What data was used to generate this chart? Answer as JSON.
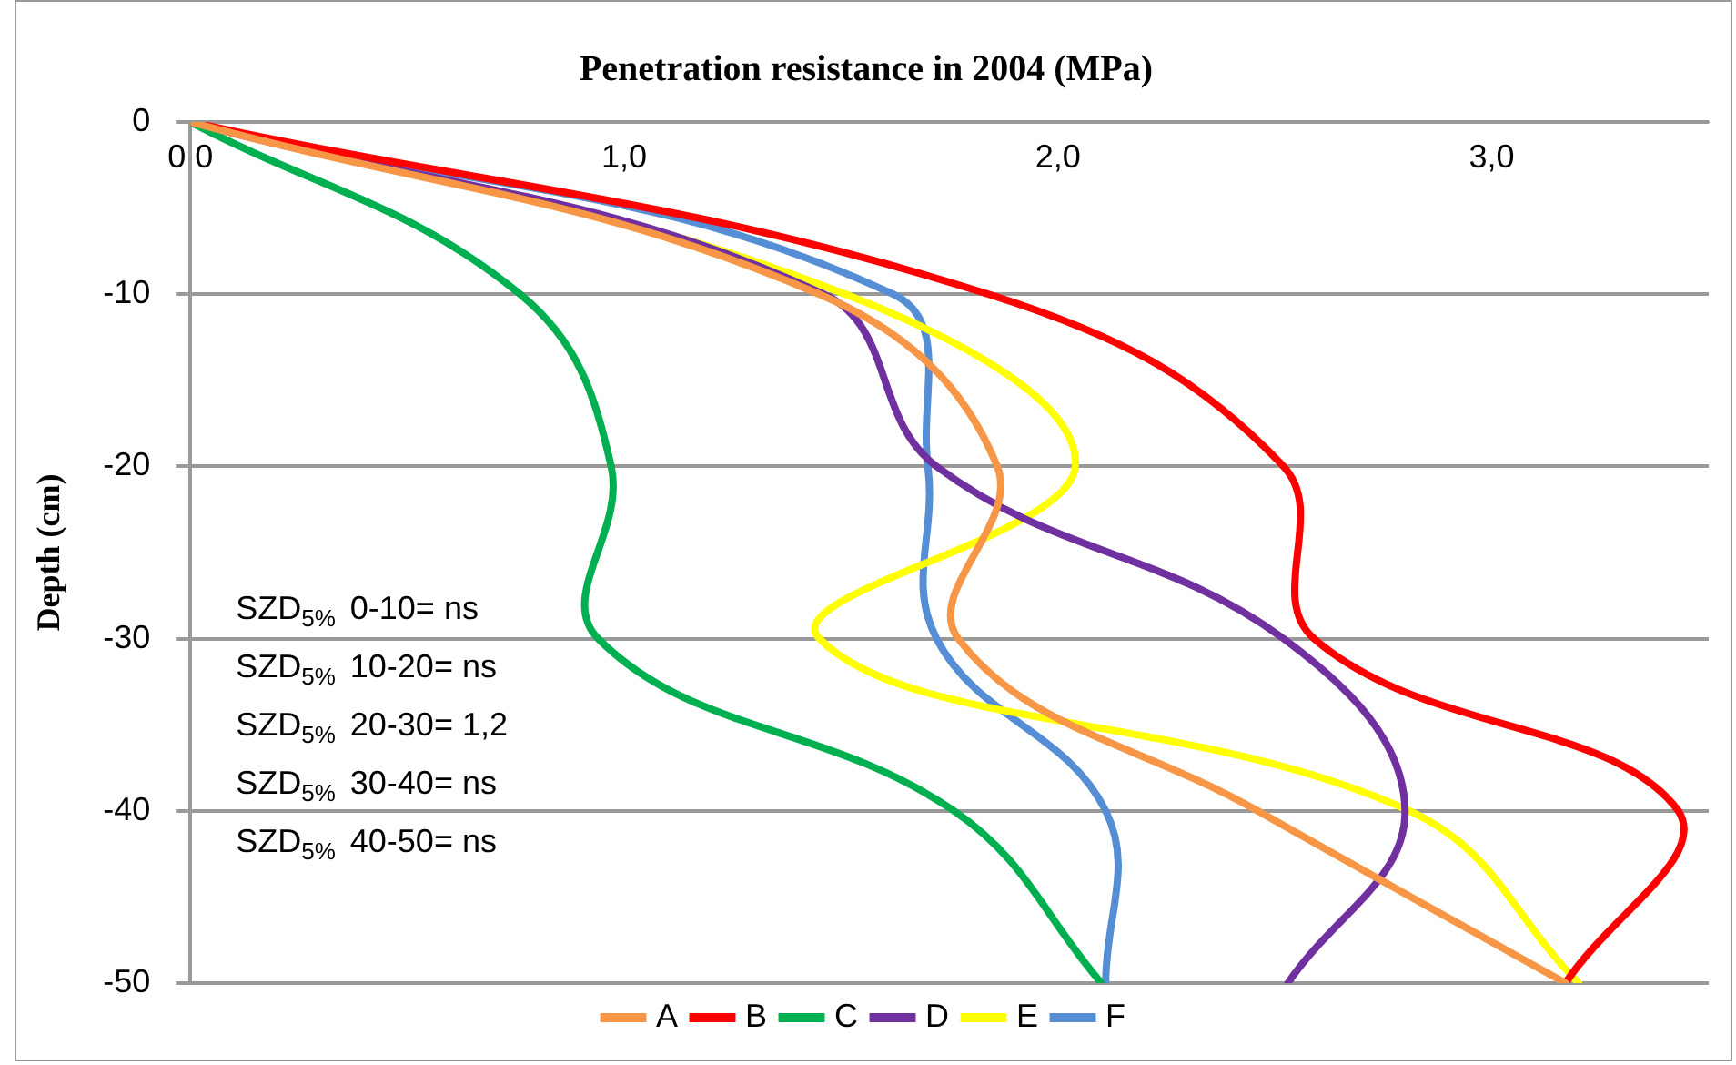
{
  "chart_data": {
    "type": "line",
    "title": "Penetration resistance in 2004 (MPa)",
    "ylabel": "Depth (cm)",
    "annotations": [
      "SZD$_{5%}$ 0-10= ns",
      "SZD$_{5%}$ 10-20= ns",
      "SZD$_{5%}$ 20-30= 1,2",
      "SZD$_{5%}$ 30-40= ns",
      "SZD$_{5%}$ 40-50= ns"
    ],
    "xlim": [
      0,
      3.5
    ],
    "xticks": [
      {
        "value": 0,
        "label": "0,0"
      },
      {
        "value": 1,
        "label": "1,0"
      },
      {
        "value": 2,
        "label": "2,0"
      },
      {
        "value": 3,
        "label": "3,0"
      }
    ],
    "ylim": [
      -50,
      0
    ],
    "yticks": [
      -50,
      -40,
      -30,
      -20,
      -10,
      0
    ],
    "grid": "y",
    "legend": "bottom",
    "marker": "none",
    "line_style": "solid",
    "series": [
      {
        "name": "A",
        "color": "#f79646",
        "x": [
          0,
          1.45,
          1.86,
          1.77,
          2.46,
          3.17
        ],
        "values": [
          0,
          -10,
          -20,
          -30,
          -40,
          -50
        ]
      },
      {
        "name": "B",
        "color": "#ff0000",
        "x": [
          0,
          1.84,
          2.52,
          2.59,
          3.43,
          3.17
        ],
        "values": [
          0,
          -10,
          -20,
          -30,
          -40,
          -50
        ]
      },
      {
        "name": "C",
        "color": "#00b050",
        "x": [
          0,
          0.76,
          0.97,
          0.94,
          1.76,
          2.1
        ],
        "values": [
          0,
          -10,
          -20,
          -30,
          -40,
          -50
        ]
      },
      {
        "name": "D",
        "color": "#7030a0",
        "x": [
          0,
          1.46,
          1.72,
          2.52,
          2.8,
          2.53
        ],
        "values": [
          0,
          -10,
          -20,
          -30,
          -40,
          -50
        ]
      },
      {
        "name": "E",
        "color": "#ffff00",
        "x": [
          0,
          1.51,
          2.04,
          1.45,
          2.81,
          3.2
        ],
        "values": [
          0,
          -10,
          -20,
          -30,
          -40,
          -50
        ]
      },
      {
        "name": "F",
        "color": "#558ed5",
        "x": [
          0,
          1.62,
          1.7,
          1.72,
          2.11,
          2.11
        ],
        "values": [
          0,
          -10,
          -20,
          -30,
          -40,
          -50
        ]
      }
    ]
  }
}
